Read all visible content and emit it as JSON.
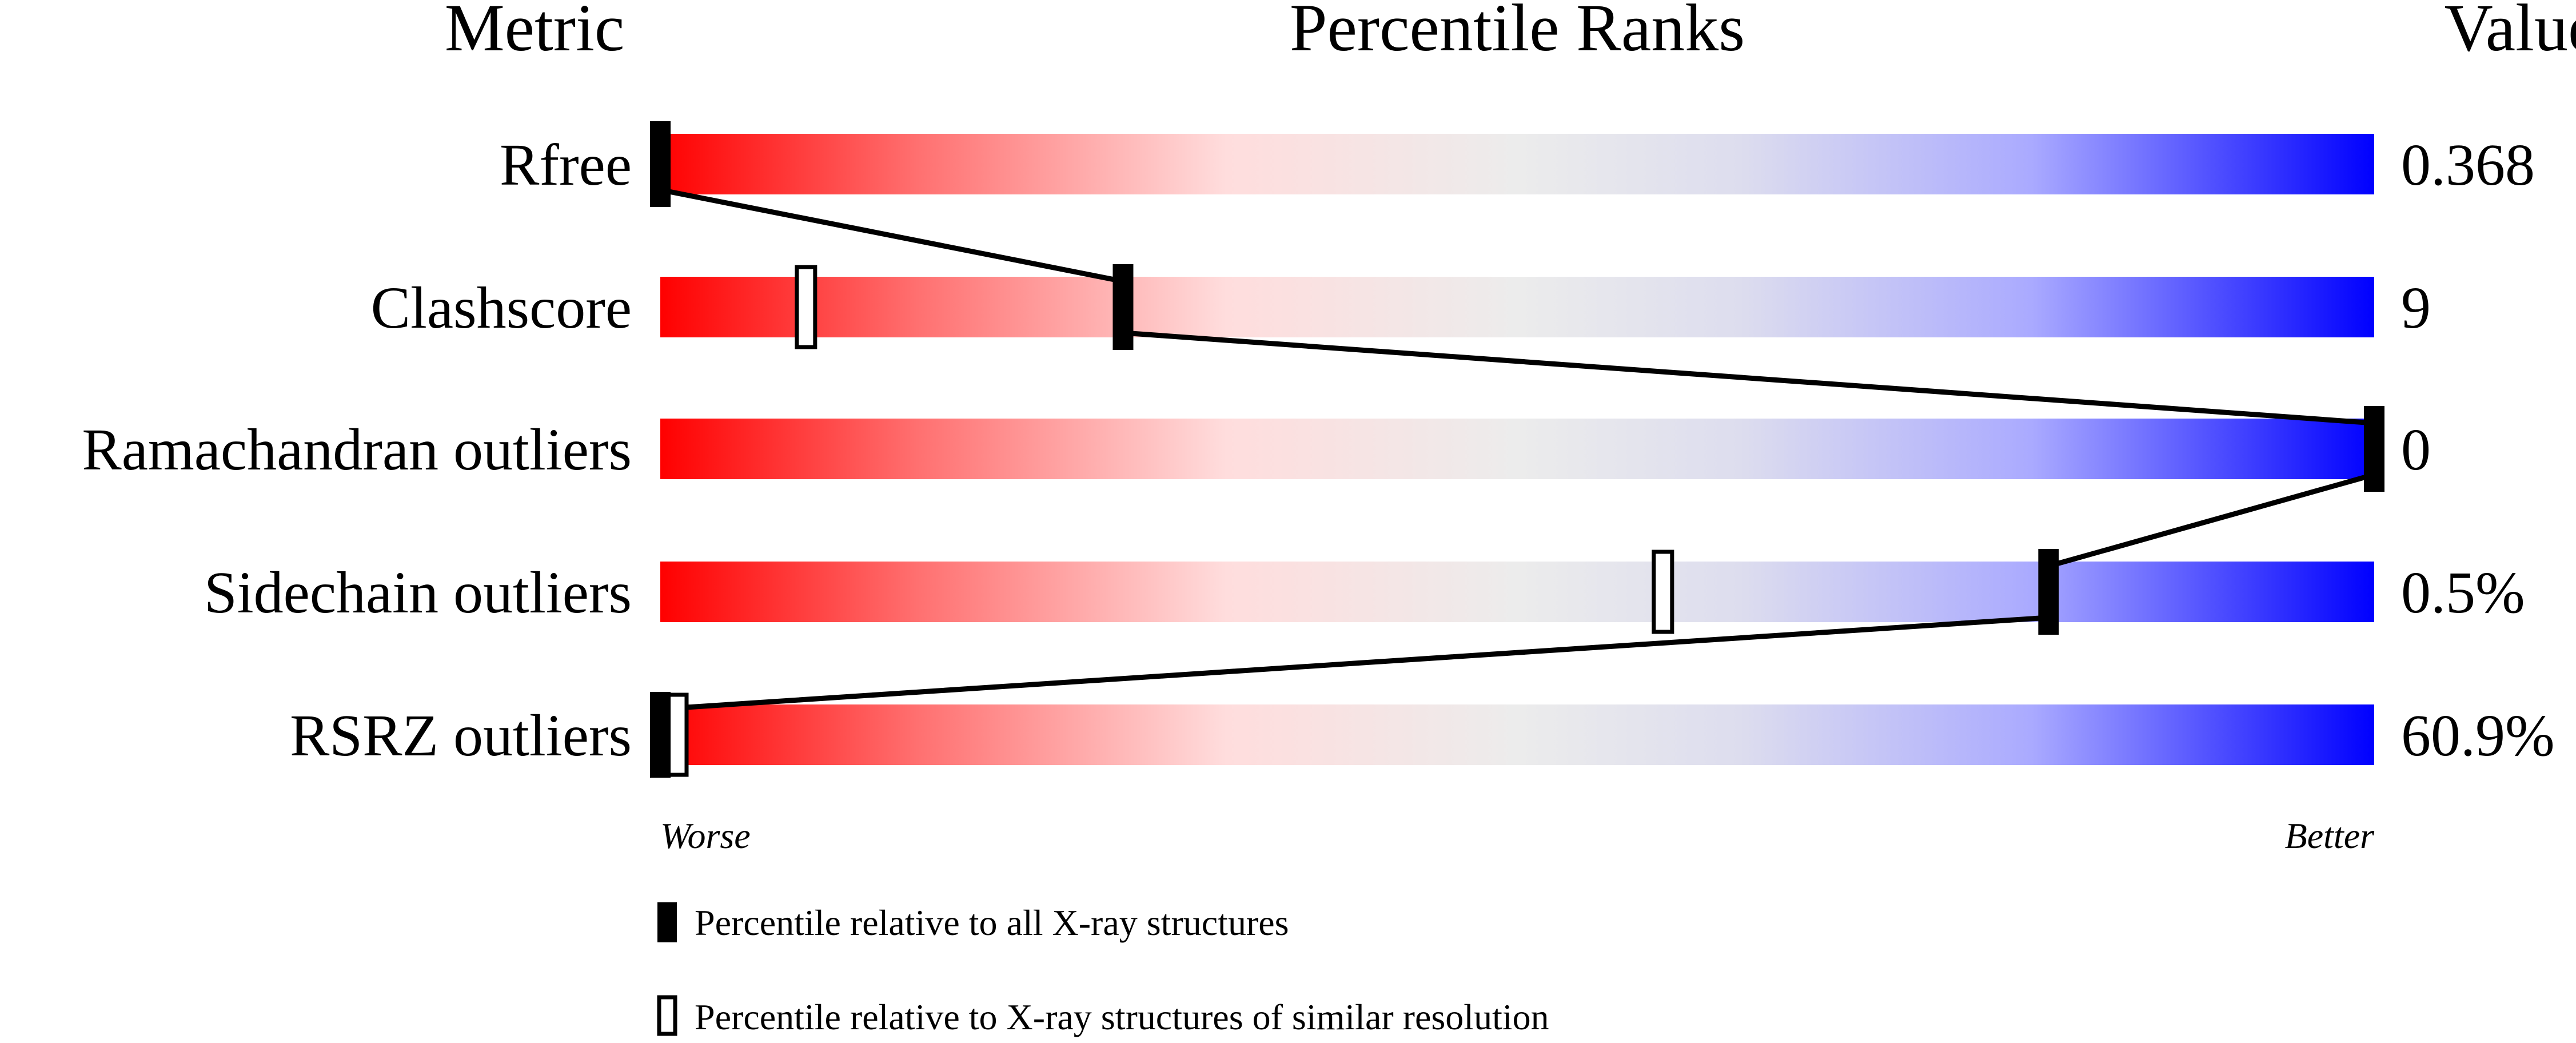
{
  "chart_data": {
    "type": "percentile-slider",
    "headers": {
      "metric": "Metric",
      "ranks": "Percentile Ranks",
      "value": "Value"
    },
    "axis": {
      "worse": "Worse",
      "better": "Better",
      "range": [
        0,
        100
      ]
    },
    "gradient_colors": [
      "#ff0000",
      "#ff7070",
      "#fdd",
      "#ececec",
      "#dde",
      "#aaaaff",
      "#0000ff"
    ],
    "metrics": [
      {
        "name": "Rfree",
        "value": "0.368",
        "percentile_all": 0,
        "percentile_similar": null
      },
      {
        "name": "Clashscore",
        "value": "9",
        "percentile_all": 27,
        "percentile_similar": 8.5
      },
      {
        "name": "Ramachandran outliers",
        "value": "0",
        "percentile_all": 100,
        "percentile_similar": null
      },
      {
        "name": "Sidechain outliers",
        "value": "0.5%",
        "percentile_all": 81,
        "percentile_similar": 58.5
      },
      {
        "name": "RSRZ outliers",
        "value": "60.9%",
        "percentile_all": 0,
        "percentile_similar": 1
      }
    ],
    "legend": {
      "all": "Percentile relative to all X-ray structures",
      "similar": "Percentile relative to X-ray structures of similar resolution"
    }
  }
}
